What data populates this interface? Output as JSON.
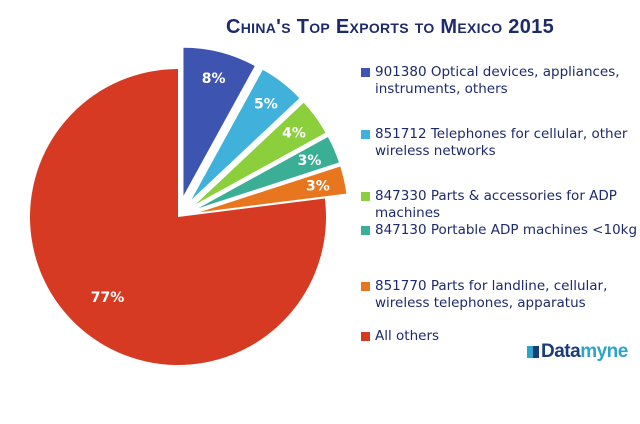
{
  "chart_data": {
    "type": "pie",
    "title": "China's Top Exports to Mexico 2015",
    "slices": [
      {
        "label": "901380 Optical devices, appliances, instruments, others",
        "value": 8,
        "display": "8%",
        "color": "#3d55b0",
        "exploded": true
      },
      {
        "label": "851712 Telephones for cellular, other wireless networks",
        "value": 5,
        "display": "5%",
        "color": "#3fb1da",
        "exploded": true
      },
      {
        "label": "847330 Parts & accessories for ADP machines",
        "value": 4,
        "display": "4%",
        "color": "#8ccf3d",
        "exploded": true
      },
      {
        "label": "847130 Portable ADP machines <10kg",
        "value": 3,
        "display": "3%",
        "color": "#3aaf96",
        "exploded": true
      },
      {
        "label": "851770 Parts for landline, cellular, wireless telephones, apparatus",
        "value": 3,
        "display": "3%",
        "color": "#e8761e",
        "exploded": true
      },
      {
        "label": "All others",
        "value": 77,
        "display": "77%",
        "color": "#d63a22",
        "exploded": false
      }
    ],
    "legend_position": "right"
  },
  "logo": {
    "part1": "Data",
    "part2": "myne"
  }
}
